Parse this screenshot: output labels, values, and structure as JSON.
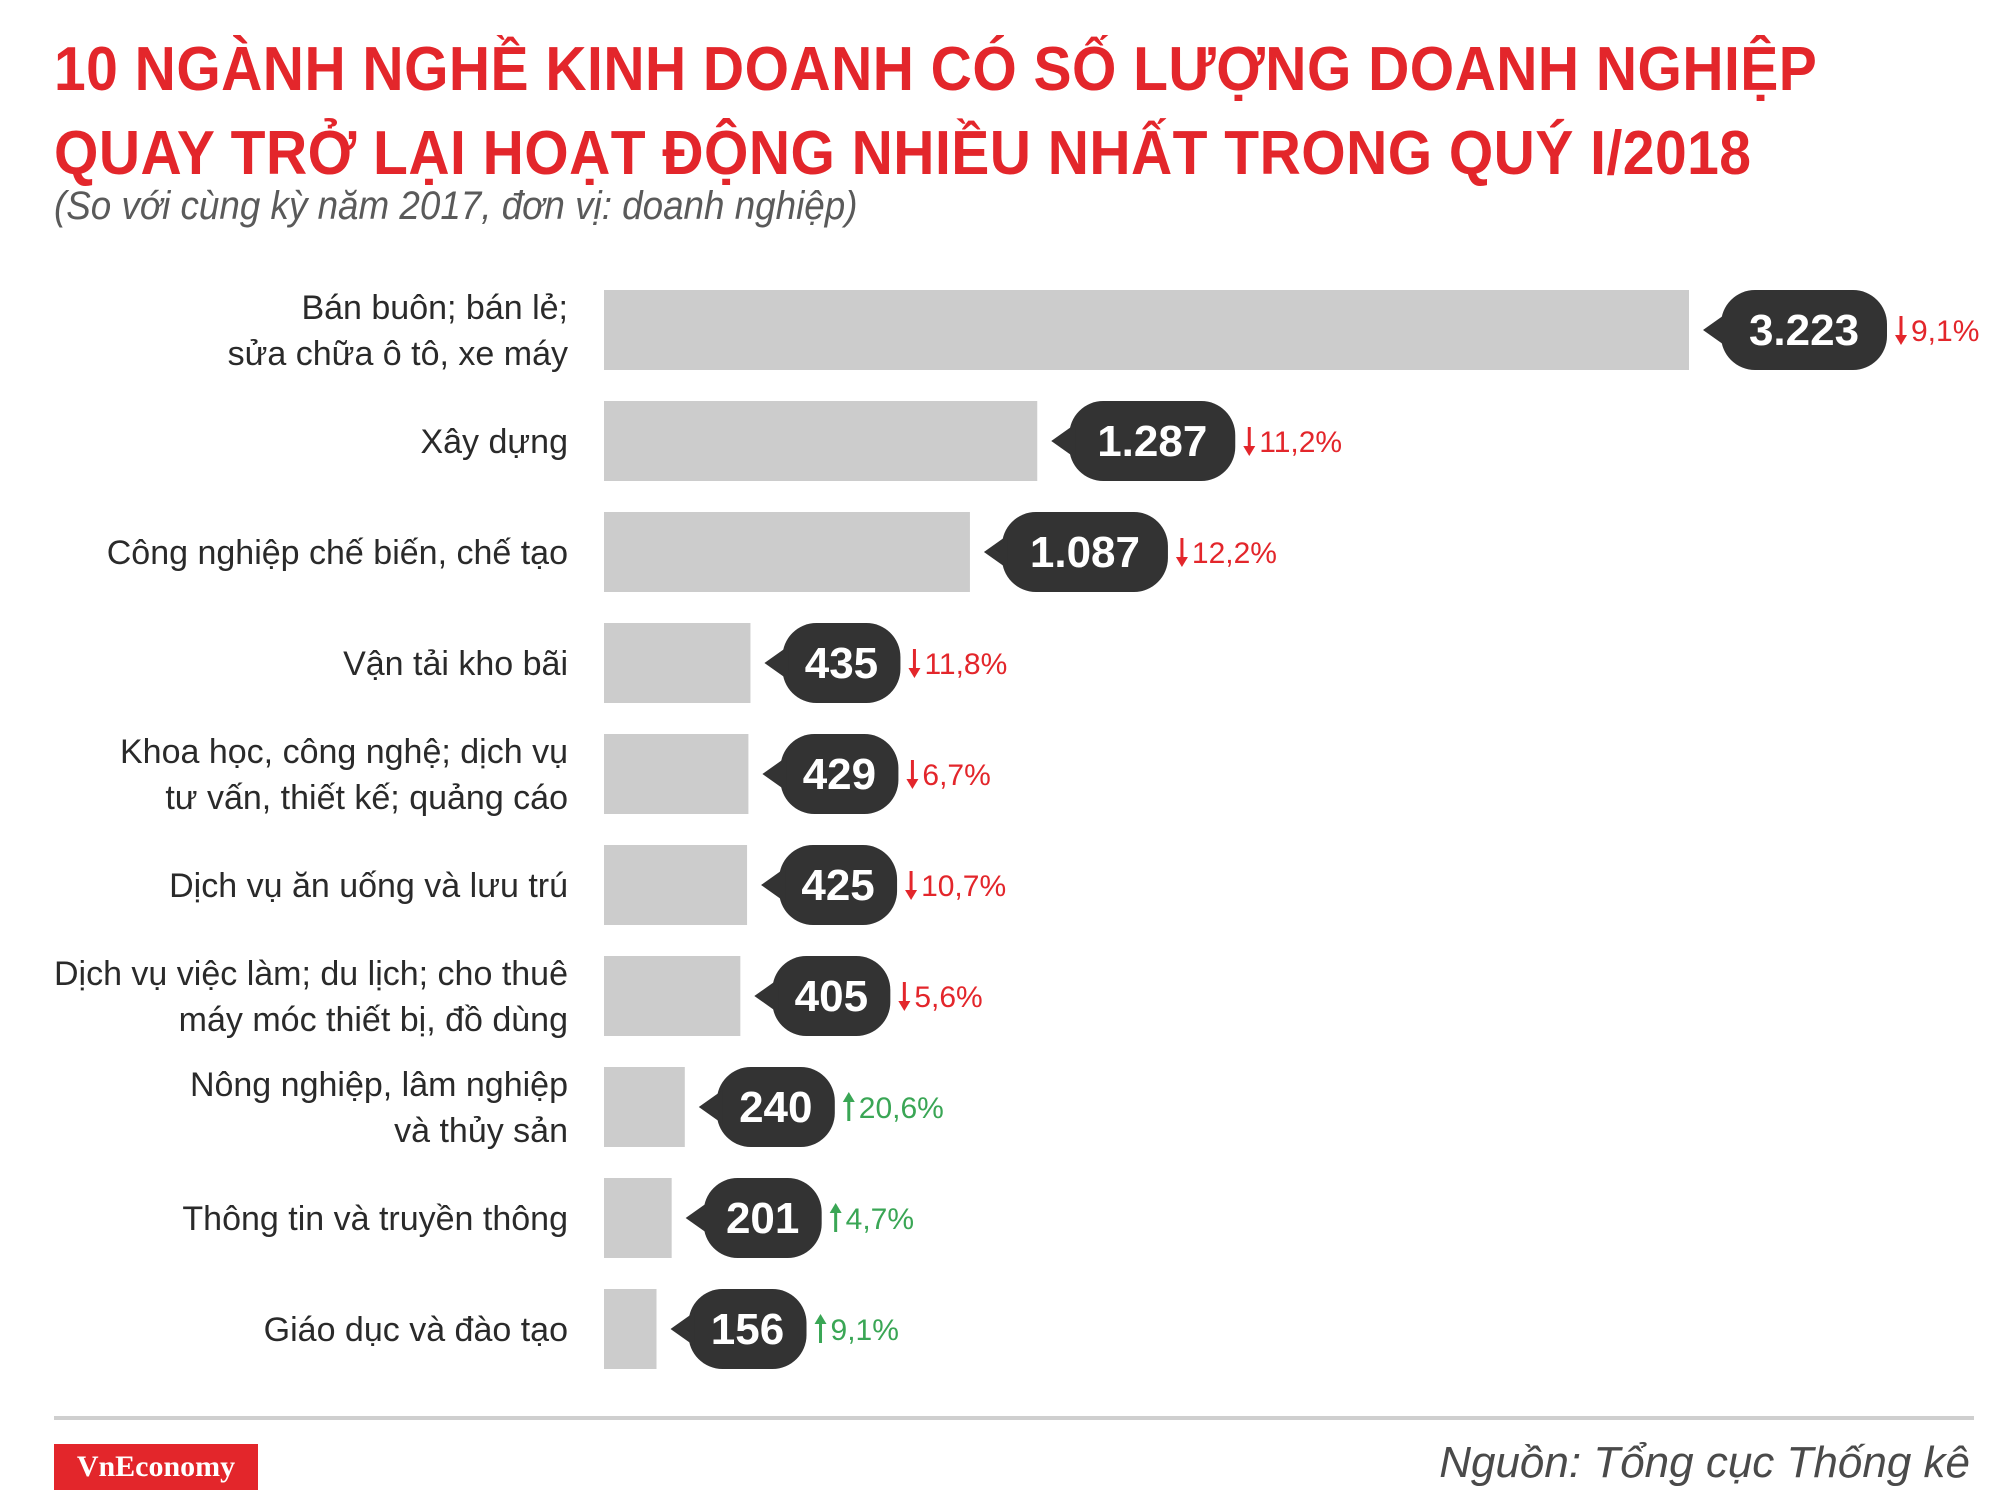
{
  "header": {
    "title_line1": "10 NGÀNH NGHỀ KINH DOANH CÓ SỐ LƯỢNG DOANH NGHIỆP",
    "title_line2": "QUAY TRỞ LẠI HOẠT ĐỘNG NHIỀU NHẤT TRONG QUÝ I/2018",
    "subtitle": "(So với cùng kỳ năm 2017, đơn vị: doanh nghiệp)"
  },
  "chart_data": {
    "type": "bar",
    "orientation": "horizontal",
    "categories": [
      [
        "Bán buôn; bán lẻ;",
        "sửa chữa ô tô, xe máy"
      ],
      [
        "Xây dựng"
      ],
      [
        "Công nghiệp chế biến, chế tạo"
      ],
      [
        "Vận tải kho bãi"
      ],
      [
        "Khoa học, công nghệ; dịch vụ",
        "tư vấn, thiết kế; quảng cáo"
      ],
      [
        "Dịch vụ ăn uống và lưu trú"
      ],
      [
        "Dịch vụ việc làm; du lịch; cho thuê",
        "máy móc thiết bị, đồ dùng"
      ],
      [
        "Nông nghiệp, lâm nghiệp",
        "và thủy sản"
      ],
      [
        "Thông tin và truyền thông"
      ],
      [
        "Giáo dục và đào tạo"
      ]
    ],
    "values": [
      3223,
      1287,
      1087,
      435,
      429,
      425,
      405,
      240,
      201,
      156
    ],
    "value_labels": [
      "3.223",
      "1.287",
      "1.087",
      "435",
      "429",
      "425",
      "405",
      "240",
      "201",
      "156"
    ],
    "changes": [
      "9,1%",
      "11,2%",
      "12,2%",
      "11,8%",
      "6,7%",
      "10,7%",
      "5,6%",
      "20,6%",
      "4,7%",
      "9,1%"
    ],
    "change_direction": [
      "down",
      "down",
      "down",
      "down",
      "down",
      "down",
      "down",
      "up",
      "up",
      "up"
    ],
    "colors": {
      "bar": "#cccccc",
      "label_bg": "#333333",
      "down": "#e3262b",
      "up": "#3aa655"
    }
  },
  "footer": {
    "brand": "VnEconomy",
    "source": "Nguồn: Tổng cục Thống kê"
  }
}
